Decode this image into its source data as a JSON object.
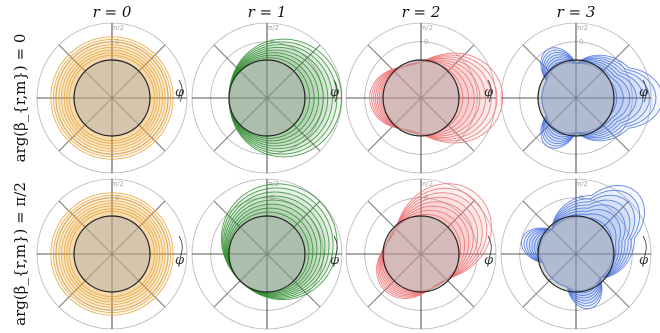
{
  "figure": {
    "column_titles": [
      "r = 0",
      "r = 1",
      "r = 2",
      "r = 3"
    ],
    "row_titles": [
      "arg(β_{r,m}) = 0",
      "arg(β_{r,m}) = π/2"
    ],
    "angle_label": "φ",
    "radial_tick_labels": [
      "0",
      "π/2"
    ],
    "colors": {
      "r0": "#e8a33a",
      "r1": "#2f8f2f",
      "r2": "#f07070",
      "r3": "#4a73e0",
      "grid": "#b5b5b5",
      "axis": "#777777",
      "reference_circle_fill": "#aaaaaa",
      "reference_circle_stroke": "#222222"
    }
  },
  "chart_data": [
    {
      "type": "polar",
      "row": "arg(β_{r,m}) = 0",
      "column": "r = 0",
      "color": "#e8a33a",
      "curve_family": "concentric circles, all radii larger than reference"
    },
    {
      "type": "polar",
      "row": "arg(β_{r,m}) = 0",
      "column": "r = 1",
      "color": "#2f8f2f",
      "curve_family": "circles shifted toward φ = 0"
    },
    {
      "type": "polar",
      "row": "arg(β_{r,m}) = 0",
      "column": "r = 2",
      "color": "#f07070",
      "curve_family": "two-lobed pattern along horizontal axis"
    },
    {
      "type": "polar",
      "row": "arg(β_{r,m}) = 0",
      "column": "r = 3",
      "color": "#4a73e0",
      "curve_family": "three-lobed pattern"
    },
    {
      "type": "polar",
      "row": "arg(β_{r,m}) = π/2",
      "column": "r = 0",
      "color": "#e8a33a",
      "curve_family": "circles shifted toward upper-right"
    },
    {
      "type": "polar",
      "row": "arg(β_{r,m}) = π/2",
      "column": "r = 1",
      "color": "#2f8f2f",
      "curve_family": "rotated circles shifted up-left"
    },
    {
      "type": "polar",
      "row": "arg(β_{r,m}) = π/2",
      "column": "r = 2",
      "color": "#f07070",
      "curve_family": "rotated two-lobed pattern"
    },
    {
      "type": "polar",
      "row": "arg(β_{r,m}) = π/2",
      "column": "r = 3",
      "color": "#4a73e0",
      "curve_family": "rotated three-lobed pattern"
    }
  ]
}
